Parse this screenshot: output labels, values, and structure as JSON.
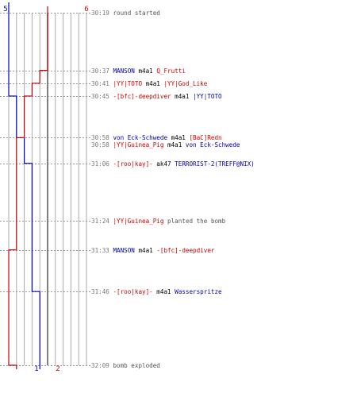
{
  "chart_data": {
    "type": "line",
    "title": "",
    "xlabel": "",
    "ylabel": "",
    "team_labels": {
      "blue_top": "5",
      "red_top": "6",
      "blue_bottom": "1",
      "red_bottom": "2"
    },
    "player_count_range": [
      0,
      10
    ],
    "series": [
      {
        "name": "",
        "color": "#0000cc",
        "steps": [
          {
            "time": "30:19",
            "alive": 5
          },
          {
            "time": "30:45",
            "alive": 4
          },
          {
            "time": "30:58",
            "alive": 3
          },
          {
            "time": "31:06",
            "alive": 2
          },
          {
            "time": "31:46",
            "alive": 1
          },
          {
            "time": "32:09",
            "alive": 1
          }
        ]
      },
      {
        "name": "",
        "color": "#cc0000",
        "steps": [
          {
            "time": "30:19",
            "alive": 6
          },
          {
            "time": "30:37",
            "alive": 5
          },
          {
            "time": "30:41",
            "alive": 4
          },
          {
            "time": "30:45",
            "alive": 3
          },
          {
            "time": "30:58",
            "alive": 2
          },
          {
            "time": "31:33",
            "alive": 1
          },
          {
            "time": "31:46",
            "alive": 1
          },
          {
            "time": "32:09",
            "alive": 2
          }
        ]
      }
    ],
    "events": [
      {
        "time": "30:19",
        "parts": [
          {
            "t": "round started",
            "c": "#555555"
          }
        ]
      },
      {
        "time": "30:37",
        "parts": [
          {
            "t": "MANSON",
            "c": "#0000aa"
          },
          {
            "t": " m4a1 ",
            "c": "#000000"
          },
          {
            "t": "Q_Frutti",
            "c": "#cc0000"
          }
        ]
      },
      {
        "time": "30:41",
        "parts": [
          {
            "t": "|YY|TOTO",
            "c": "#cc0000"
          },
          {
            "t": " m4a1 ",
            "c": "#000000"
          },
          {
            "t": "|YY|God_Like",
            "c": "#cc0000"
          }
        ]
      },
      {
        "time": "30:45",
        "parts": [
          {
            "t": "-[bfc]-deepdiver",
            "c": "#cc0000"
          },
          {
            "t": " m4a1 ",
            "c": "#000000"
          },
          {
            "t": "|YY|TOTO",
            "c": "#0000aa"
          }
        ]
      },
      {
        "time": "30:58",
        "parts": [
          {
            "t": "von Eck-Schwede",
            "c": "#0000aa"
          },
          {
            "t": " m4a1 ",
            "c": "#000000"
          },
          {
            "t": "[BaC]Redn",
            "c": "#cc0000"
          }
        ]
      },
      {
        "time": "30:58",
        "parts": [
          {
            "t": "|YY|Guinea_Pig",
            "c": "#cc0000"
          },
          {
            "t": " m4a1 ",
            "c": "#000000"
          },
          {
            "t": "von Eck-Schwede",
            "c": "#0000aa"
          }
        ]
      },
      {
        "time": "31:06",
        "parts": [
          {
            "t": "-[roo|kay]-",
            "c": "#cc0000"
          },
          {
            "t": " ak47 ",
            "c": "#000000"
          },
          {
            "t": "TERRORIST-2(TREFF@NIX)",
            "c": "#0000aa"
          }
        ]
      },
      {
        "time": "31:24",
        "parts": [
          {
            "t": "|YY|Guinea_Pig",
            "c": "#cc0000"
          },
          {
            "t": " planted the bomb",
            "c": "#555555"
          }
        ]
      },
      {
        "time": "31:33",
        "parts": [
          {
            "t": "MANSON",
            "c": "#0000aa"
          },
          {
            "t": " m4a1 ",
            "c": "#000000"
          },
          {
            "t": "-[bfc]-deepdiver",
            "c": "#cc0000"
          }
        ]
      },
      {
        "time": "31:46",
        "parts": [
          {
            "t": "-[roo|kay]-",
            "c": "#cc0000"
          },
          {
            "t": " m4a1 ",
            "c": "#000000"
          },
          {
            "t": "Wasserspritze",
            "c": "#0000aa"
          }
        ]
      },
      {
        "time": "32:09",
        "parts": [
          {
            "t": "bomb exploded",
            "c": "#555555"
          }
        ]
      }
    ]
  }
}
